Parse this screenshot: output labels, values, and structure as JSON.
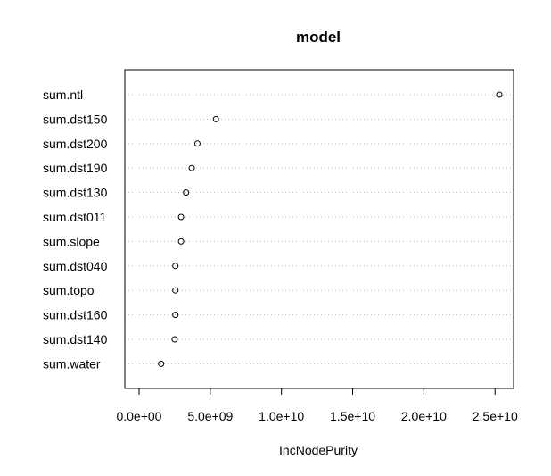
{
  "chart_data": {
    "type": "scatter",
    "title": "model",
    "xlabel": "IncNodePurity",
    "ylabel": "",
    "categories": [
      "sum.ntl",
      "sum.dst150",
      "sum.dst200",
      "sum.dst190",
      "sum.dst130",
      "sum.dst011",
      "sum.slope",
      "sum.dst040",
      "sum.topo",
      "sum.dst160",
      "sum.dst140",
      "sum.water"
    ],
    "values": [
      25300000000,
      5400000000,
      4100000000,
      3700000000,
      3300000000,
      2950000000,
      2950000000,
      2550000000,
      2550000000,
      2550000000,
      2500000000,
      1550000000
    ],
    "xlim": [
      -1000000000,
      26300000000
    ],
    "x_ticks": [
      0,
      5000000000,
      10000000000,
      15000000000,
      20000000000,
      25000000000
    ],
    "x_tick_labels": [
      "0.0e+00",
      "5.0e+09",
      "1.0e+10",
      "1.5e+10",
      "2.0e+10",
      "2.5e+10"
    ],
    "grid": "dotted horizontal lines at each variable",
    "legend": "none",
    "colors": {
      "points": "#000000",
      "grid": "#bebebe",
      "frame": "#000000"
    }
  }
}
